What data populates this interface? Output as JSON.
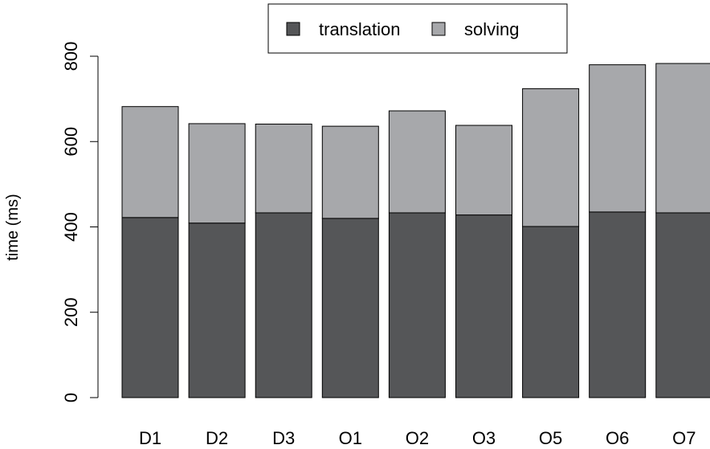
{
  "chart_data": {
    "type": "bar",
    "stacked": true,
    "title": "",
    "xlabel": "",
    "ylabel": "time (ms)",
    "ylim": [
      0,
      800
    ],
    "yticks": [
      "0",
      "200",
      "400",
      "600",
      "800"
    ],
    "categories": [
      "D1",
      "D2",
      "D3",
      "O1",
      "O2",
      "O3",
      "O5",
      "O6",
      "O7"
    ],
    "series": [
      {
        "name": "translation",
        "color": "#555658",
        "values": [
          422,
          409,
          433,
          420,
          433,
          428,
          401,
          435,
          433
        ]
      },
      {
        "name": "solving",
        "color": "#a7a8ab",
        "values": [
          260,
          233,
          208,
          216,
          239,
          210,
          323,
          345,
          350
        ]
      }
    ],
    "legend": {
      "position": "top-center",
      "orientation": "horizontal"
    },
    "grid": false
  }
}
